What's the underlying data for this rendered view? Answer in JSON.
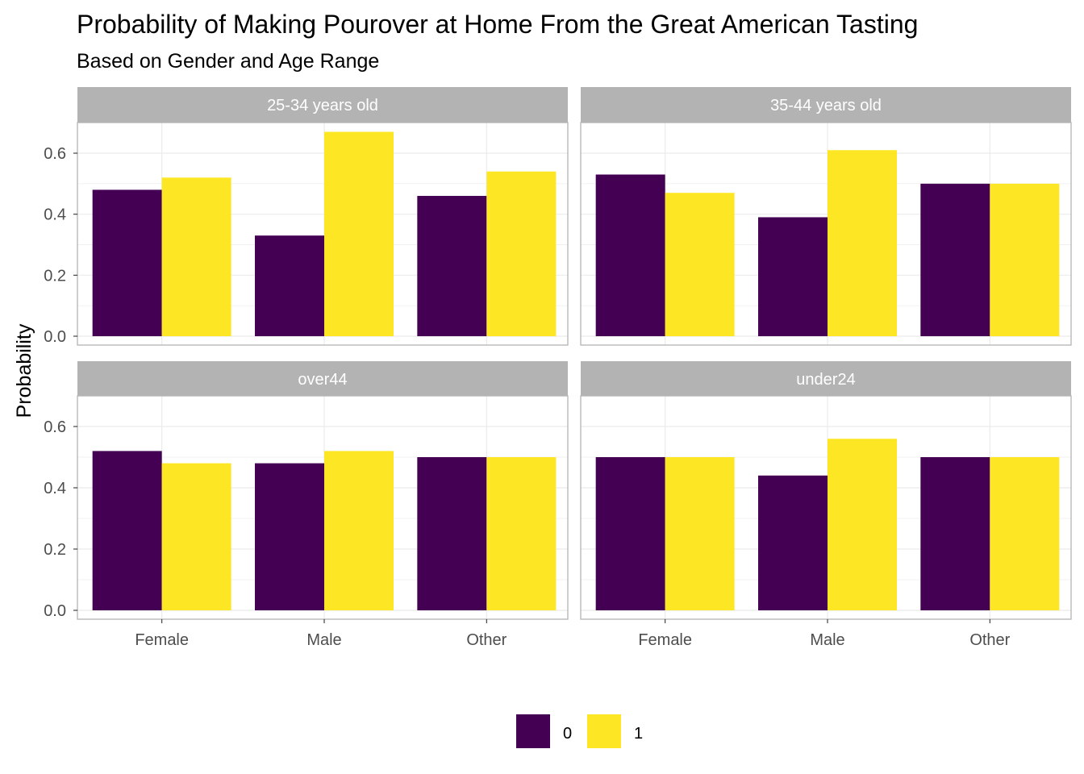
{
  "chart_data": {
    "type": "bar",
    "title": "Probability of Making Pourover at Home From the Great American Tasting",
    "subtitle": "Based on Gender and Age Range",
    "xlabel": "",
    "ylabel": "Probability",
    "categories": [
      "Female",
      "Male",
      "Other"
    ],
    "ylim": [
      0,
      0.7
    ],
    "yticks": [
      0.0,
      0.2,
      0.4,
      0.6
    ],
    "ytick_labels": [
      "0.0",
      "0.2",
      "0.4",
      "0.6"
    ],
    "grid": true,
    "legend": {
      "position": "bottom",
      "entries": [
        {
          "label": "0",
          "color": "#440154"
        },
        {
          "label": "1",
          "color": "#FDE725"
        }
      ]
    },
    "facets": [
      {
        "label": "25-34 years old",
        "series": [
          {
            "values": [
              0.48,
              0.33,
              0.46
            ]
          },
          {
            "values": [
              0.52,
              0.67,
              0.54
            ]
          }
        ]
      },
      {
        "label": "35-44 years old",
        "series": [
          {
            "values": [
              0.53,
              0.39,
              0.5
            ]
          },
          {
            "values": [
              0.47,
              0.61,
              0.5
            ]
          }
        ]
      },
      {
        "label": "over44",
        "series": [
          {
            "values": [
              0.52,
              0.48,
              0.5
            ]
          },
          {
            "values": [
              0.48,
              0.52,
              0.5
            ]
          }
        ]
      },
      {
        "label": "under24",
        "series": [
          {
            "values": [
              0.5,
              0.44,
              0.5
            ]
          },
          {
            "values": [
              0.5,
              0.56,
              0.5
            ]
          }
        ]
      }
    ]
  },
  "colors": {
    "series_0": "#440154",
    "series_1": "#FDE725",
    "strip_bg": "#b3b3b3",
    "grid": "#ebebeb",
    "panel_border": "#b3b3b3"
  }
}
